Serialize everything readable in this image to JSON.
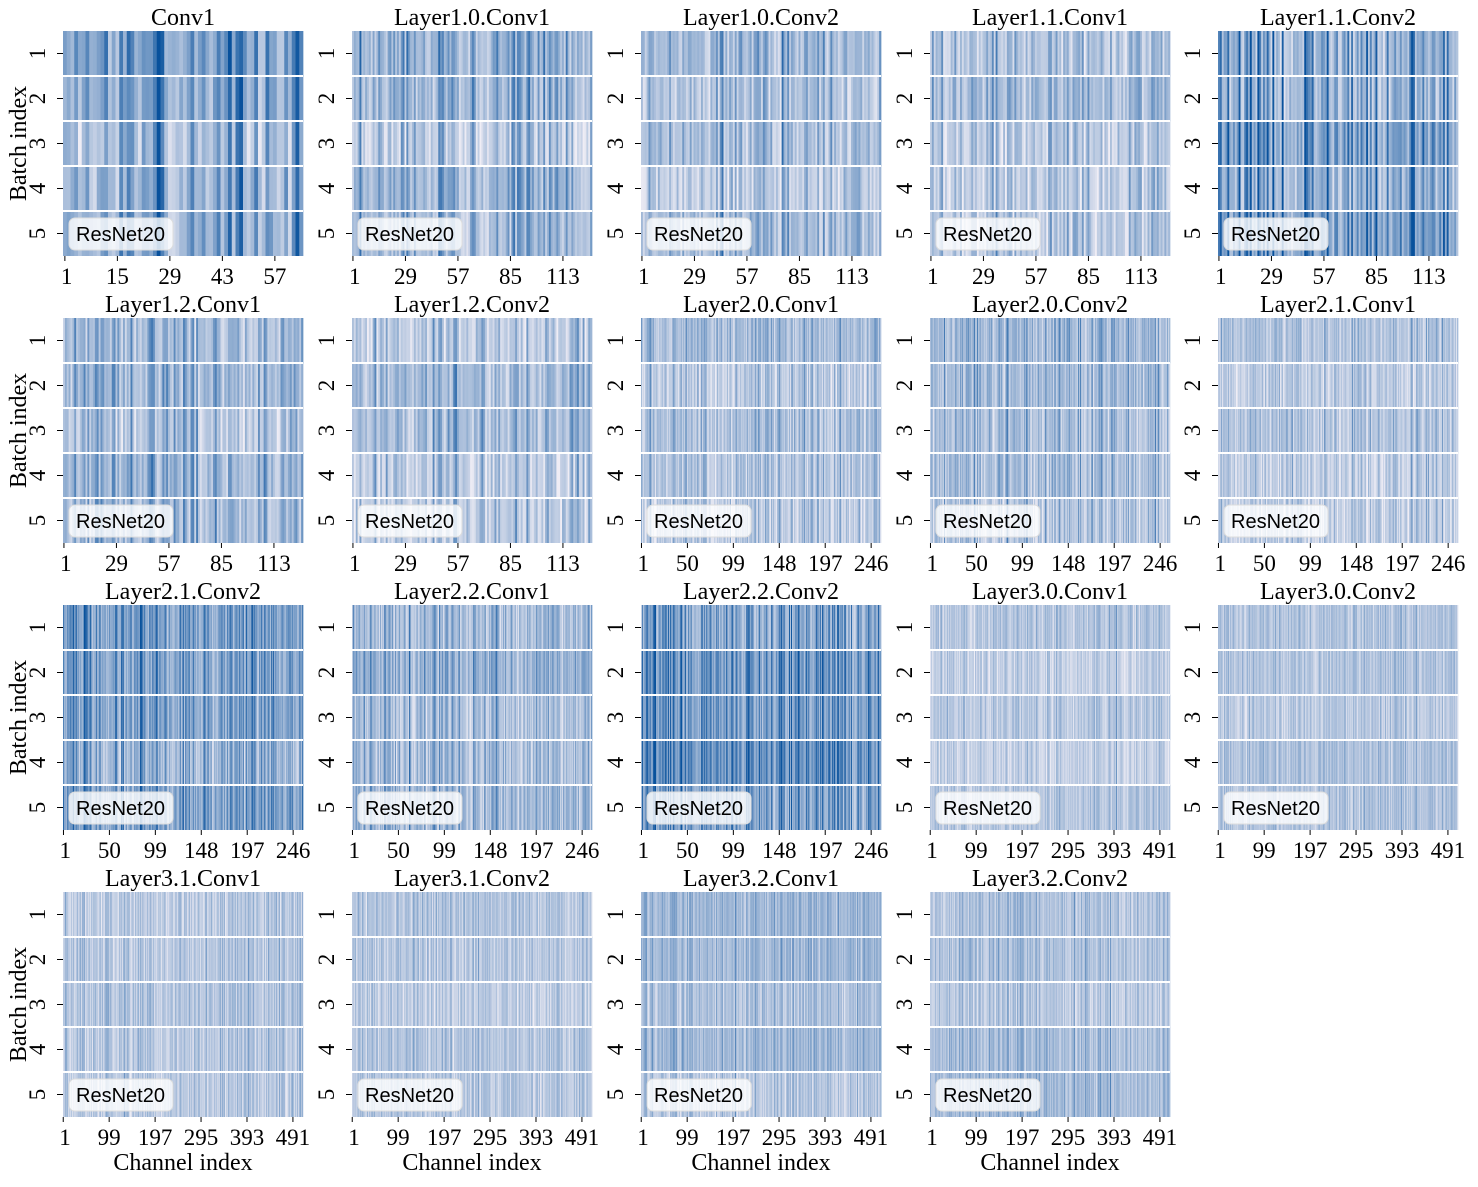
{
  "colors": {
    "low": "#efedf5",
    "high": "#08519c",
    "band_separator": "#ffffff"
  },
  "colormap": "Blues-like (light lavender to dark blue)",
  "figure": {
    "ylabel": "Batch index",
    "xlabel": "Channel index",
    "legend_text": "ResNet20"
  },
  "chart_data": [
    {
      "type": "heatmap",
      "title": "Conv1",
      "channels": 64,
      "batches": [
        1,
        2,
        3,
        4,
        5
      ],
      "xticks": [
        "1",
        "15",
        "29",
        "43",
        "57"
      ],
      "intensity": 0.55,
      "bar_width_channels": 1,
      "value_range": [
        0,
        1
      ]
    },
    {
      "type": "heatmap",
      "title": "Layer1.0.Conv1",
      "channels": 128,
      "batches": [
        1,
        2,
        3,
        4,
        5
      ],
      "xticks": [
        "1",
        "29",
        "57",
        "85",
        "113"
      ],
      "intensity": 0.42,
      "value_range": [
        0,
        1
      ]
    },
    {
      "type": "heatmap",
      "title": "Layer1.0.Conv2",
      "channels": 128,
      "batches": [
        1,
        2,
        3,
        4,
        5
      ],
      "xticks": [
        "1",
        "29",
        "57",
        "85",
        "113"
      ],
      "intensity": 0.36,
      "value_range": [
        0,
        1
      ]
    },
    {
      "type": "heatmap",
      "title": "Layer1.1.Conv1",
      "channels": 128,
      "batches": [
        1,
        2,
        3,
        4,
        5
      ],
      "xticks": [
        "1",
        "29",
        "57",
        "85",
        "113"
      ],
      "intensity": 0.34,
      "value_range": [
        0,
        1
      ]
    },
    {
      "type": "heatmap",
      "title": "Layer1.1.Conv2",
      "channels": 128,
      "batches": [
        1,
        2,
        3,
        4,
        5
      ],
      "xticks": [
        "1",
        "29",
        "57",
        "85",
        "113"
      ],
      "intensity": 0.72,
      "value_range": [
        0,
        1
      ]
    },
    {
      "type": "heatmap",
      "title": "Layer1.2.Conv1",
      "channels": 128,
      "batches": [
        1,
        2,
        3,
        4,
        5
      ],
      "xticks": [
        "1",
        "29",
        "57",
        "85",
        "113"
      ],
      "intensity": 0.42,
      "value_range": [
        0,
        1
      ]
    },
    {
      "type": "heatmap",
      "title": "Layer1.2.Conv2",
      "channels": 128,
      "batches": [
        1,
        2,
        3,
        4,
        5
      ],
      "xticks": [
        "1",
        "29",
        "57",
        "85",
        "113"
      ],
      "intensity": 0.34,
      "value_range": [
        0,
        1
      ]
    },
    {
      "type": "heatmap",
      "title": "Layer2.0.Conv1",
      "channels": 256,
      "batches": [
        1,
        2,
        3,
        4,
        5
      ],
      "xticks": [
        "1",
        "50",
        "99",
        "148",
        "197",
        "246"
      ],
      "intensity": 0.32,
      "value_range": [
        0,
        1
      ]
    },
    {
      "type": "heatmap",
      "title": "Layer2.0.Conv2",
      "channels": 256,
      "batches": [
        1,
        2,
        3,
        4,
        5
      ],
      "xticks": [
        "1",
        "50",
        "99",
        "148",
        "197",
        "246"
      ],
      "intensity": 0.42,
      "value_range": [
        0,
        1
      ]
    },
    {
      "type": "heatmap",
      "title": "Layer2.1.Conv1",
      "channels": 256,
      "batches": [
        1,
        2,
        3,
        4,
        5
      ],
      "xticks": [
        "1",
        "50",
        "99",
        "148",
        "197",
        "246"
      ],
      "intensity": 0.28,
      "value_range": [
        0,
        1
      ]
    },
    {
      "type": "heatmap",
      "title": "Layer2.1.Conv2",
      "channels": 256,
      "batches": [
        1,
        2,
        3,
        4,
        5
      ],
      "xticks": [
        "1",
        "50",
        "99",
        "148",
        "197",
        "246"
      ],
      "intensity": 0.62,
      "value_range": [
        0,
        1
      ]
    },
    {
      "type": "heatmap",
      "title": "Layer2.2.Conv1",
      "channels": 256,
      "batches": [
        1,
        2,
        3,
        4,
        5
      ],
      "xticks": [
        "1",
        "50",
        "99",
        "148",
        "197",
        "246"
      ],
      "intensity": 0.4,
      "value_range": [
        0,
        1
      ]
    },
    {
      "type": "heatmap",
      "title": "Layer2.2.Conv2",
      "channels": 256,
      "batches": [
        1,
        2,
        3,
        4,
        5
      ],
      "xticks": [
        "1",
        "50",
        "99",
        "148",
        "197",
        "246"
      ],
      "intensity": 0.66,
      "value_range": [
        0,
        1
      ]
    },
    {
      "type": "heatmap",
      "title": "Layer3.0.Conv1",
      "channels": 512,
      "batches": [
        1,
        2,
        3,
        4,
        5
      ],
      "xticks": [
        "1",
        "99",
        "197",
        "295",
        "393",
        "491"
      ],
      "intensity": 0.28,
      "value_range": [
        0,
        1
      ]
    },
    {
      "type": "heatmap",
      "title": "Layer3.0.Conv2",
      "channels": 512,
      "batches": [
        1,
        2,
        3,
        4,
        5
      ],
      "xticks": [
        "1",
        "99",
        "197",
        "295",
        "393",
        "491"
      ],
      "intensity": 0.28,
      "value_range": [
        0,
        1
      ]
    },
    {
      "type": "heatmap",
      "title": "Layer3.1.Conv1",
      "channels": 512,
      "batches": [
        1,
        2,
        3,
        4,
        5
      ],
      "xticks": [
        "1",
        "99",
        "197",
        "295",
        "393",
        "491"
      ],
      "intensity": 0.32,
      "value_range": [
        0,
        1
      ]
    },
    {
      "type": "heatmap",
      "title": "Layer3.1.Conv2",
      "channels": 512,
      "batches": [
        1,
        2,
        3,
        4,
        5
      ],
      "xticks": [
        "1",
        "99",
        "197",
        "295",
        "393",
        "491"
      ],
      "intensity": 0.3,
      "value_range": [
        0,
        1
      ]
    },
    {
      "type": "heatmap",
      "title": "Layer3.2.Conv1",
      "channels": 512,
      "batches": [
        1,
        2,
        3,
        4,
        5
      ],
      "xticks": [
        "1",
        "99",
        "197",
        "295",
        "393",
        "491"
      ],
      "intensity": 0.36,
      "value_range": [
        0,
        1
      ]
    },
    {
      "type": "heatmap",
      "title": "Layer3.2.Conv2",
      "channels": 512,
      "batches": [
        1,
        2,
        3,
        4,
        5
      ],
      "xticks": [
        "1",
        "99",
        "197",
        "295",
        "393",
        "491"
      ],
      "intensity": 0.34,
      "value_range": [
        0,
        1
      ]
    }
  ]
}
